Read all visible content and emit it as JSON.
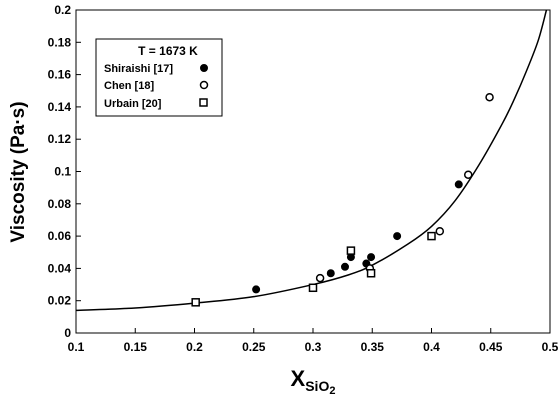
{
  "chart_data": {
    "type": "scatter",
    "title": "",
    "xlabel": "X",
    "xlabel_subscript": "SiO",
    "xlabel_subscript2": "2",
    "ylabel": "Viscosity (Pa·s)",
    "xlim": [
      0.1,
      0.5
    ],
    "ylim": [
      0,
      0.2
    ],
    "x_ticks": [
      0.1,
      0.15,
      0.2,
      0.25,
      0.3,
      0.35,
      0.4,
      0.45,
      0.5
    ],
    "x_tick_labels": [
      "0.1",
      "0.15",
      "0.2",
      "0.25",
      "0.3",
      "0.35",
      "0.4",
      "0.45",
      "0.5"
    ],
    "y_ticks": [
      0,
      0.02,
      0.04,
      0.06,
      0.08,
      0.1,
      0.12,
      0.14,
      0.16,
      0.18,
      0.2
    ],
    "y_tick_labels": [
      "0",
      "0.02",
      "0.04",
      "0.06",
      "0.08",
      "0.1",
      "0.12",
      "0.14",
      "0.16",
      "0.18",
      "0.2"
    ],
    "grid": false,
    "legend": {
      "title": "T = 1673 K",
      "placement": "top-left"
    },
    "series": [
      {
        "name": "Shiraishi  [17]",
        "marker": "filled-circle",
        "points": [
          [
            0.252,
            0.027
          ],
          [
            0.315,
            0.037
          ],
          [
            0.327,
            0.041
          ],
          [
            0.332,
            0.047
          ],
          [
            0.345,
            0.043
          ],
          [
            0.349,
            0.047
          ],
          [
            0.371,
            0.06
          ],
          [
            0.423,
            0.092
          ]
        ]
      },
      {
        "name": "Chen [18]",
        "marker": "open-circle",
        "points": [
          [
            0.306,
            0.034
          ],
          [
            0.348,
            0.04
          ],
          [
            0.407,
            0.063
          ],
          [
            0.431,
            0.098
          ],
          [
            0.449,
            0.146
          ]
        ]
      },
      {
        "name": "Urbain [20]",
        "marker": "open-square",
        "points": [
          [
            0.201,
            0.019
          ],
          [
            0.3,
            0.028
          ],
          [
            0.332,
            0.051
          ],
          [
            0.349,
            0.037
          ],
          [
            0.4,
            0.06
          ]
        ]
      }
    ],
    "fit_curve": {
      "points": [
        [
          0.1,
          0.014
        ],
        [
          0.15,
          0.0155
        ],
        [
          0.2,
          0.0185
        ],
        [
          0.25,
          0.0225
        ],
        [
          0.3,
          0.03
        ],
        [
          0.33,
          0.036
        ],
        [
          0.35,
          0.042
        ],
        [
          0.38,
          0.055
        ],
        [
          0.4,
          0.066
        ],
        [
          0.42,
          0.082
        ],
        [
          0.44,
          0.104
        ],
        [
          0.46,
          0.13
        ],
        [
          0.47,
          0.145
        ],
        [
          0.48,
          0.162
        ],
        [
          0.49,
          0.181
        ],
        [
          0.497,
          0.2
        ]
      ]
    }
  }
}
